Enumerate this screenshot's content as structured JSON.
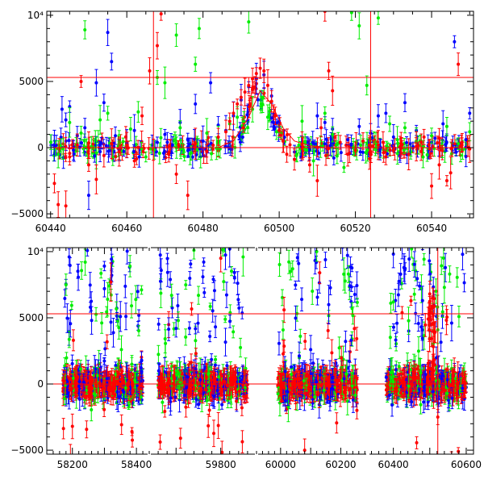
{
  "chart_data": [
    {
      "type": "scatter",
      "panel": "top",
      "x_tick_labels": [
        "60440",
        "60460",
        "60480",
        "60500",
        "60520",
        "60540"
      ],
      "x_ticks": [
        60440,
        60460,
        60480,
        60500,
        60520,
        60540
      ],
      "y_tick_labels": [
        "10⁴",
        "5000",
        "0",
        "−5000"
      ],
      "y_ticks": [
        10000,
        5000,
        0,
        -5000
      ],
      "xlim": [
        60439,
        60551
      ],
      "ylim": [
        -5300,
        10300
      ],
      "hlines": [
        0,
        5300
      ],
      "vlines": [
        60467,
        60524
      ],
      "model_curve": {
        "color": "#ff0000",
        "x": [
          60440,
          60484,
          60488,
          60492,
          60495,
          60498,
          60501,
          60504,
          60508,
          60512,
          60551
        ],
        "y": [
          0,
          0,
          500,
          2300,
          4300,
          3300,
          1500,
          500,
          150,
          0,
          0
        ]
      },
      "series": [
        {
          "color": "#0000ff",
          "points": [
            {
              "x": 60441,
              "y": 150
            },
            {
              "x": 60443,
              "y": 2900
            },
            {
              "x": 60444,
              "y": 2100
            },
            {
              "x": 60445,
              "y": 3100
            },
            {
              "x": 60446,
              "y": -200
            },
            {
              "x": 60447,
              "y": 900
            },
            {
              "x": 60449,
              "y": 1500
            },
            {
              "x": 60450,
              "y": -3600
            },
            {
              "x": 60452,
              "y": 4900
            },
            {
              "x": 60453,
              "y": -300
            },
            {
              "x": 60454,
              "y": 3400
            },
            {
              "x": 60455,
              "y": 8700
            },
            {
              "x": 60456,
              "y": 6500
            },
            {
              "x": 60457,
              "y": 900
            },
            {
              "x": 60458,
              "y": -200
            },
            {
              "x": 60460,
              "y": 300
            },
            {
              "x": 60462,
              "y": 1300
            },
            {
              "x": 60468,
              "y": 400
            },
            {
              "x": 60470,
              "y": 1000
            },
            {
              "x": 60472,
              "y": 200
            },
            {
              "x": 60474,
              "y": 1900
            },
            {
              "x": 60476,
              "y": 600
            },
            {
              "x": 60478,
              "y": 3300
            },
            {
              "x": 60480,
              "y": 500
            },
            {
              "x": 60482,
              "y": 4900
            },
            {
              "x": 60484,
              "y": 1700
            },
            {
              "x": 60486,
              "y": 1300
            },
            {
              "x": 60488,
              "y": 2400
            },
            {
              "x": 60490,
              "y": 3600
            },
            {
              "x": 60492,
              "y": 4600
            },
            {
              "x": 60494,
              "y": 5200
            },
            {
              "x": 60496,
              "y": 5500
            },
            {
              "x": 60498,
              "y": 3900
            },
            {
              "x": 60500,
              "y": 2000
            },
            {
              "x": 60510,
              "y": 2400
            },
            {
              "x": 60512,
              "y": 1900
            },
            {
              "x": 60514,
              "y": 1400
            },
            {
              "x": 60518,
              "y": 600
            },
            {
              "x": 60521,
              "y": 1600
            },
            {
              "x": 60524,
              "y": 1100
            },
            {
              "x": 60526,
              "y": 2400
            },
            {
              "x": 60528,
              "y": 2600
            },
            {
              "x": 60530,
              "y": 800
            },
            {
              "x": 60533,
              "y": 3400
            },
            {
              "x": 60536,
              "y": 1300
            },
            {
              "x": 60540,
              "y": 400
            },
            {
              "x": 60543,
              "y": 1800
            },
            {
              "x": 60546,
              "y": 8000
            },
            {
              "x": 60549,
              "y": 600
            },
            {
              "x": 60550,
              "y": 2600
            }
          ]
        },
        {
          "color": "#00ee00",
          "points": [
            {
              "x": 60442,
              "y": -500
            },
            {
              "x": 60445,
              "y": 1900
            },
            {
              "x": 60448,
              "y": 1100
            },
            {
              "x": 60449,
              "y": 8900
            },
            {
              "x": 60452,
              "y": -400
            },
            {
              "x": 60453,
              "y": 2100
            },
            {
              "x": 60455,
              "y": 2600
            },
            {
              "x": 60458,
              "y": 300
            },
            {
              "x": 60461,
              "y": 1400
            },
            {
              "x": 60463,
              "y": 2700
            },
            {
              "x": 60465,
              "y": -700
            },
            {
              "x": 60468,
              "y": 5300
            },
            {
              "x": 60470,
              "y": 4900
            },
            {
              "x": 60473,
              "y": 8500
            },
            {
              "x": 60474,
              "y": 1500
            },
            {
              "x": 60478,
              "y": 6300
            },
            {
              "x": 60479,
              "y": 9000
            },
            {
              "x": 60481,
              "y": 1100
            },
            {
              "x": 60484,
              "y": 500
            },
            {
              "x": 60487,
              "y": 1800
            },
            {
              "x": 60489,
              "y": 2300
            },
            {
              "x": 60492,
              "y": 9500
            },
            {
              "x": 60493,
              "y": 2900
            },
            {
              "x": 60497,
              "y": 2300
            },
            {
              "x": 60500,
              "y": 1200
            },
            {
              "x": 60506,
              "y": 2000
            },
            {
              "x": 60509,
              "y": -1000
            },
            {
              "x": 60512,
              "y": 2600
            },
            {
              "x": 60514,
              "y": 1000
            },
            {
              "x": 60517,
              "y": -1500
            },
            {
              "x": 60519,
              "y": 10200
            },
            {
              "x": 60521,
              "y": 9200
            },
            {
              "x": 60523,
              "y": 4700
            },
            {
              "x": 60526,
              "y": 9800
            },
            {
              "x": 60529,
              "y": 1800
            },
            {
              "x": 60531,
              "y": 600
            },
            {
              "x": 60533,
              "y": 1500
            },
            {
              "x": 60536,
              "y": 500
            },
            {
              "x": 60540,
              "y": 900
            },
            {
              "x": 60544,
              "y": 1600
            },
            {
              "x": 60547,
              "y": 300
            },
            {
              "x": 60550,
              "y": 1200
            }
          ]
        },
        {
          "color": "#ff0000",
          "points": [
            {
              "x": 60441,
              "y": -2700
            },
            {
              "x": 60442,
              "y": -4300
            },
            {
              "x": 60444,
              "y": -4400
            },
            {
              "x": 60445,
              "y": -700
            },
            {
              "x": 60447,
              "y": 200
            },
            {
              "x": 60448,
              "y": 5000
            },
            {
              "x": 60450,
              "y": -1300
            },
            {
              "x": 60452,
              "y": -2400
            },
            {
              "x": 60454,
              "y": -600
            },
            {
              "x": 60456,
              "y": 300
            },
            {
              "x": 60458,
              "y": -300
            },
            {
              "x": 60460,
              "y": 200
            },
            {
              "x": 60462,
              "y": -1000
            },
            {
              "x": 60464,
              "y": 2400
            },
            {
              "x": 60466,
              "y": 5800
            },
            {
              "x": 60468,
              "y": 7700
            },
            {
              "x": 60469,
              "y": 10100
            },
            {
              "x": 60471,
              "y": -500
            },
            {
              "x": 60473,
              "y": -2000
            },
            {
              "x": 60476,
              "y": -3600
            },
            {
              "x": 60478,
              "y": 300
            },
            {
              "x": 60481,
              "y": -300
            },
            {
              "x": 60484,
              "y": 800
            },
            {
              "x": 60486,
              "y": 1200
            },
            {
              "x": 60487,
              "y": 2000
            },
            {
              "x": 60488,
              "y": 2600
            },
            {
              "x": 60489,
              "y": 3300
            },
            {
              "x": 60490,
              "y": 3800
            },
            {
              "x": 60491,
              "y": 4200
            },
            {
              "x": 60492,
              "y": 4700
            },
            {
              "x": 60493,
              "y": 5200
            },
            {
              "x": 60494,
              "y": 5600
            },
            {
              "x": 60495,
              "y": 6000
            },
            {
              "x": 60496,
              "y": 5800
            },
            {
              "x": 60497,
              "y": 4700
            },
            {
              "x": 60498,
              "y": 3500
            },
            {
              "x": 60499,
              "y": 2400
            },
            {
              "x": 60500,
              "y": 1300
            },
            {
              "x": 60501,
              "y": 500
            },
            {
              "x": 60502,
              "y": -500
            },
            {
              "x": 60504,
              "y": -900
            },
            {
              "x": 60506,
              "y": 200
            },
            {
              "x": 60508,
              "y": -1300
            },
            {
              "x": 60510,
              "y": -2500
            },
            {
              "x": 60511,
              "y": 1500
            },
            {
              "x": 60512,
              "y": 10300
            },
            {
              "x": 60513,
              "y": 5800
            },
            {
              "x": 60514,
              "y": 4300
            },
            {
              "x": 60516,
              "y": 400
            },
            {
              "x": 60518,
              "y": -500
            },
            {
              "x": 60520,
              "y": -200
            },
            {
              "x": 60522,
              "y": 500
            },
            {
              "x": 60524,
              "y": -300
            },
            {
              "x": 60526,
              "y": 200
            },
            {
              "x": 60528,
              "y": -700
            },
            {
              "x": 60530,
              "y": -200
            },
            {
              "x": 60532,
              "y": 300
            },
            {
              "x": 60534,
              "y": -500
            },
            {
              "x": 60536,
              "y": 100
            },
            {
              "x": 60538,
              "y": 800
            },
            {
              "x": 60540,
              "y": -2900
            },
            {
              "x": 60542,
              "y": -1300
            },
            {
              "x": 60544,
              "y": -2500
            },
            {
              "x": 60545,
              "y": -1900
            },
            {
              "x": 60547,
              "y": 6300
            },
            {
              "x": 60548,
              "y": 400
            },
            {
              "x": 60550,
              "y": -100
            }
          ]
        }
      ]
    },
    {
      "type": "scatter",
      "panel": "bottom",
      "x_tick_labels": [
        "58200",
        "58400",
        "59800",
        "60000",
        "60200",
        "60400",
        "60600"
      ],
      "y_tick_labels": [
        "10⁴",
        "5000",
        "0",
        "−5000"
      ],
      "y_ticks": [
        10000,
        5000,
        0,
        -5000
      ],
      "ylim": [
        -5300,
        10300
      ],
      "hlines": [
        0,
        5300
      ],
      "segments": [
        {
          "xlim": [
            58120,
            58440
          ],
          "data_range": [
            58170,
            58420
          ],
          "ticks": [
            58200,
            58400
          ]
        },
        {
          "xlim": [
            59640,
            59880
          ],
          "data_range": [
            59660,
            59860
          ],
          "ticks": [
            59800
          ]
        },
        {
          "xlim": [
            59920,
            60290
          ],
          "data_range": [
            59990,
            60255
          ],
          "ticks": [
            60000,
            60200
          ]
        },
        {
          "xlim": [
            60330,
            60620
          ],
          "data_range": [
            60380,
            60600
          ],
          "ticks": [
            60400,
            60600
          ]
        }
      ],
      "vlines": [
        60522
      ],
      "series": [
        {
          "color": "#0000ff",
          "description_values": [
            {
              "x": 58190,
              "y": 9600
            },
            {
              "x": 58260,
              "y": 4800
            },
            {
              "x": 58300,
              "y": 7200
            },
            {
              "x": 58350,
              "y": 5100
            },
            {
              "x": 59700,
              "y": 4200
            },
            {
              "x": 59760,
              "y": 8100
            },
            {
              "x": 59820,
              "y": 10200
            },
            {
              "x": 60060,
              "y": 9100
            },
            {
              "x": 60100,
              "y": 2600
            },
            {
              "x": 60160,
              "y": 6000
            },
            {
              "x": 60420,
              "y": 8300
            },
            {
              "x": 60480,
              "y": 6300
            },
            {
              "x": 60560,
              "y": 4600
            },
            {
              "x": 60590,
              "y": 9800
            }
          ]
        },
        {
          "color": "#00ee00",
          "description_values": [
            {
              "x": 58180,
              "y": 7500
            },
            {
              "x": 58240,
              "y": 9200
            },
            {
              "x": 58310,
              "y": 6400
            },
            {
              "x": 58380,
              "y": 8900
            },
            {
              "x": 59690,
              "y": 6700
            },
            {
              "x": 59740,
              "y": 10100
            },
            {
              "x": 59850,
              "y": 9600
            },
            {
              "x": 60040,
              "y": 8700
            },
            {
              "x": 60120,
              "y": 10000
            },
            {
              "x": 60210,
              "y": 8300
            },
            {
              "x": 60400,
              "y": 6200
            },
            {
              "x": 60450,
              "y": 10200
            },
            {
              "x": 60540,
              "y": 7300
            },
            {
              "x": 60580,
              "y": 5100
            }
          ]
        },
        {
          "color": "#ff0000",
          "description_values": [
            {
              "x": 58200,
              "y": -3200
            },
            {
              "x": 58320,
              "y": 7700
            },
            {
              "x": 59710,
              "y": -4100
            },
            {
              "x": 59800,
              "y": 9500
            },
            {
              "x": 60080,
              "y": -5000
            },
            {
              "x": 60130,
              "y": 8400
            },
            {
              "x": 60500,
              "y": 6800
            },
            {
              "x": 60522,
              "y": -2500
            }
          ]
        }
      ]
    }
  ]
}
